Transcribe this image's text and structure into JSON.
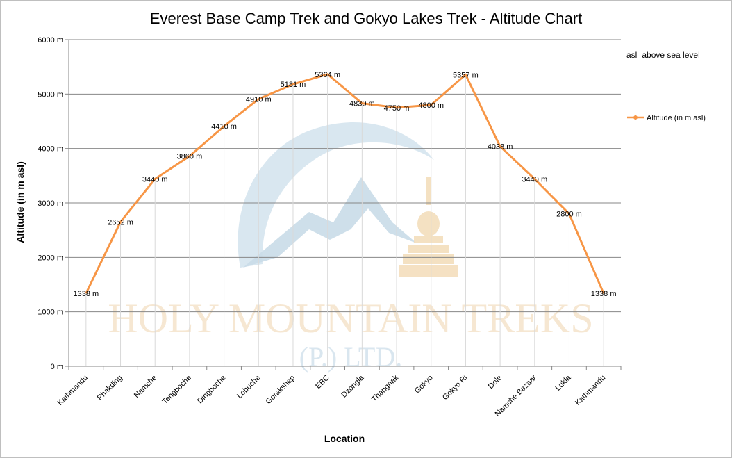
{
  "watermark": {
    "line1": "HOLY MOUNTAIN TREKS",
    "line2": "(P.) LTD."
  },
  "note": "asl=above sea level",
  "colors": {
    "series": "#f79646",
    "grid": "#878787",
    "watermark_blue": "#c9dbe8",
    "watermark_gold": "#f3dcb8"
  },
  "chart_data": {
    "type": "line",
    "title": "Everest Base Camp Trek and Gokyo Lakes Trek - Altitude Chart",
    "xlabel": "Location",
    "ylabel": "Altitude (in m asl)",
    "ylim": [
      0,
      6000
    ],
    "y_ticks": [
      0,
      1000,
      2000,
      3000,
      4000,
      5000,
      6000
    ],
    "y_tick_labels": [
      "0 m",
      "1000 m",
      "2000 m",
      "3000 m",
      "4000 m",
      "5000 m",
      "6000 m"
    ],
    "grid": true,
    "legend_position": "right",
    "categories": [
      "Kathmandu",
      "Phakding",
      "Namche",
      "Tengboche",
      "Dingboche",
      "Lobuche",
      "Gorakshep",
      "EBC",
      "Dzongla",
      "Thangnak",
      "Gokyo",
      "Gokyo Ri",
      "Dole",
      "Namche Bazaar",
      "Lukla",
      "Kathmandu"
    ],
    "series": [
      {
        "name": "Altitude (in  m asl)",
        "values": [
          1338,
          2652,
          3440,
          3860,
          4410,
          4910,
          5181,
          5364,
          4830,
          4750,
          4800,
          5357,
          4038,
          3440,
          2800,
          1338
        ],
        "labels": [
          "1338 m",
          "2652 m",
          "3440 m",
          "3860 m",
          "4410 m",
          "4910 m",
          "5181 m",
          "5364 m",
          "4830 m",
          "4750 m",
          "4800 m",
          "5357 m",
          "4038 m",
          "3440 m",
          "2800 m",
          "1338 m"
        ]
      }
    ]
  }
}
